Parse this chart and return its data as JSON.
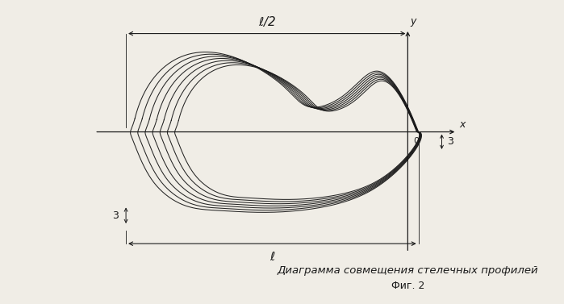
{
  "title": "Диаграмма совмещения стелечных профилей",
  "fig_label": "Фиг. 2",
  "background_color": "#f0ede6",
  "line_color": "#1a1a1a",
  "num_profiles": 7,
  "axis_color": "#1a1a1a",
  "dim_color": "#1a1a1a",
  "figsize": [
    6.99,
    3.77
  ],
  "dpi": 100
}
